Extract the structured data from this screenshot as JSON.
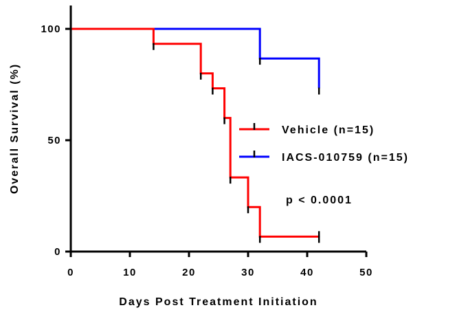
{
  "chart_data": {
    "type": "line",
    "subtype": "kaplan-meier-step",
    "xlabel": "Days Post Treatment Initiation",
    "ylabel": "Overall Survival (%)",
    "xlim": [
      0,
      50
    ],
    "ylim": [
      0,
      100
    ],
    "xticks": [
      "0",
      "10",
      "20",
      "30",
      "40",
      "50"
    ],
    "yticks": [
      "0",
      "50",
      "100"
    ],
    "grid": false,
    "legend_position": "center-right",
    "annotation": "p < 0.0001",
    "series": [
      {
        "name": "Vehicle (n=15)",
        "color": "#ff0000",
        "x": [
          0,
          14,
          22,
          24,
          26,
          27,
          30,
          32,
          42
        ],
        "y": [
          100,
          93.3,
          80,
          73.3,
          60,
          33.3,
          20,
          6.7,
          6.7
        ],
        "censored": [
          [
            42,
            6.7
          ]
        ]
      },
      {
        "name": "IACS-010759 (n=15)",
        "color": "#0000ff",
        "x": [
          0,
          32,
          42
        ],
        "y": [
          100,
          86.7,
          73.3
        ],
        "censored": []
      }
    ]
  }
}
